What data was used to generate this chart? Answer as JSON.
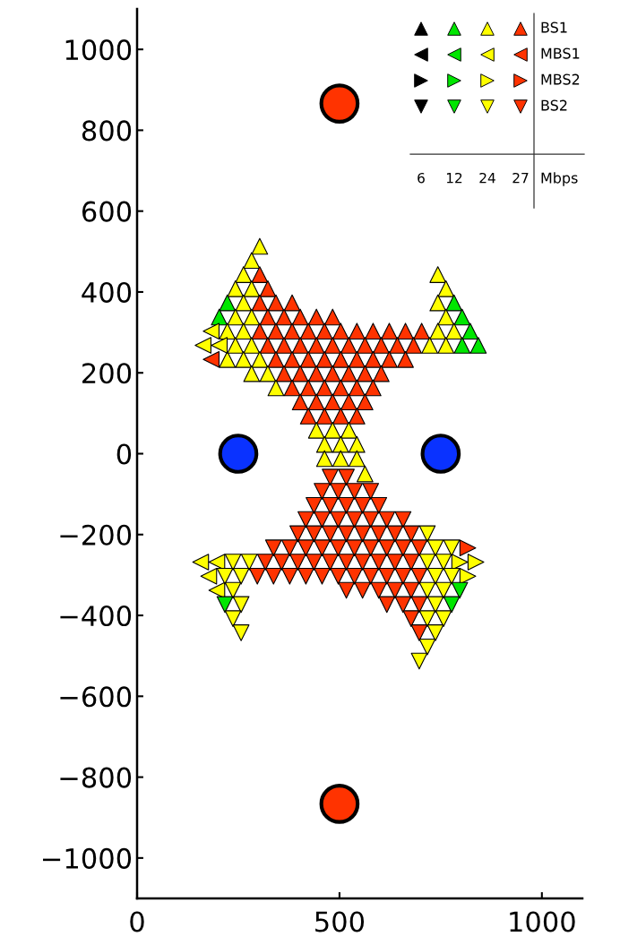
{
  "chart_data": {
    "type": "scatter",
    "xlim": [
      0,
      1100
    ],
    "ylim": [
      -1100,
      1100
    ],
    "xticks": [
      0,
      500,
      1000
    ],
    "yticks": [
      -1000,
      -800,
      -600,
      -400,
      -200,
      0,
      200,
      400,
      600,
      800,
      1000
    ],
    "grid": false,
    "legend": "top right",
    "annotations": [
      "6",
      "12",
      "24",
      "27",
      "Mbps"
    ],
    "colors": [
      "#000000",
      "#00e600",
      "#ffff00",
      "#ff3300"
    ],
    "series": [
      {
        "name": "BS1",
        "marker": "triangle_up",
        "x": [
          303,
          283,
          263,
          303,
          743,
          243,
          283,
          323,
          763,
          223,
          263,
          303,
          343,
          383,
          743,
          783,
          203,
          243,
          283,
          323,
          363,
          403,
          443,
          483,
          763,
          803,
          223,
          263,
          303,
          343,
          383,
          423,
          463,
          503,
          543,
          583,
          623,
          663,
          703,
          743,
          783,
          823,
          243,
          283,
          323,
          363,
          403,
          443,
          483,
          523,
          563,
          603,
          643,
          683,
          723,
          763,
          803,
          843,
          223,
          263,
          303,
          343,
          383,
          423,
          463,
          503,
          543,
          583,
          623,
          663,
          283,
          323,
          363,
          403,
          443,
          483,
          523,
          563,
          603,
          343,
          383,
          423,
          463,
          503,
          543,
          583,
          403,
          443,
          483,
          523,
          563,
          423,
          463,
          503,
          543,
          443,
          483,
          523,
          463,
          503,
          543,
          463,
          503,
          543,
          563
        ],
        "values": [
          513,
          478,
          443,
          443,
          443,
          408,
          408,
          408,
          408,
          373,
          373,
          373,
          373,
          373,
          373,
          373,
          338,
          338,
          338,
          338,
          338,
          338,
          338,
          338,
          338,
          338,
          303,
          303,
          303,
          303,
          303,
          303,
          303,
          303,
          303,
          303,
          303,
          303,
          303,
          303,
          303,
          303,
          268,
          268,
          268,
          268,
          268,
          268,
          268,
          268,
          268,
          268,
          268,
          268,
          268,
          268,
          268,
          268,
          233,
          233,
          233,
          233,
          233,
          233,
          233,
          233,
          233,
          233,
          233,
          233,
          198,
          198,
          198,
          198,
          198,
          198,
          198,
          198,
          198,
          163,
          163,
          163,
          163,
          163,
          163,
          163,
          128,
          128,
          128,
          128,
          128,
          93,
          93,
          93,
          93,
          58,
          58,
          58,
          23,
          23,
          23,
          -12,
          -12,
          -12,
          -50
        ],
        "colors": [
          "#ffff00",
          "#ffff00",
          "#ffff00",
          "#ff3300",
          "#ffff00",
          "#ffff00",
          "#ffff00",
          "#ff3300",
          "#ffff00",
          "#00e600",
          "#ffff00",
          "#ff3300",
          "#ff3300",
          "#ff3300",
          "#ffff00",
          "#00e600",
          "#00e600",
          "#ffff00",
          "#ffff00",
          "#ff3300",
          "#ff3300",
          "#ff3300",
          "#ff3300",
          "#ff3300",
          "#ffff00",
          "#00e600",
          "#ffff00",
          "#ffff00",
          "#ff3300",
          "#ff3300",
          "#ff3300",
          "#ff3300",
          "#ff3300",
          "#ff3300",
          "#ff3300",
          "#ff3300",
          "#ff3300",
          "#ff3300",
          "#ff3300",
          "#ffff00",
          "#ffff00",
          "#00e600",
          "#ffff00",
          "#ffff00",
          "#ff3300",
          "#ff3300",
          "#ff3300",
          "#ff3300",
          "#ff3300",
          "#ff3300",
          "#ff3300",
          "#ff3300",
          "#ff3300",
          "#ff3300",
          "#ffff00",
          "#ffff00",
          "#00e600",
          "#00e600",
          "#ffff00",
          "#ffff00",
          "#ffff00",
          "#ff3300",
          "#ff3300",
          "#ff3300",
          "#ff3300",
          "#ff3300",
          "#ff3300",
          "#ff3300",
          "#ff3300",
          "#ff3300",
          "#ffff00",
          "#ffff00",
          "#ff3300",
          "#ff3300",
          "#ff3300",
          "#ff3300",
          "#ff3300",
          "#ff3300",
          "#ff3300",
          "#ffff00",
          "#ff3300",
          "#ff3300",
          "#ff3300",
          "#ff3300",
          "#ff3300",
          "#ff3300",
          "#ff3300",
          "#ff3300",
          "#ff3300",
          "#ff3300",
          "#ff3300",
          "#ff3300",
          "#ff3300",
          "#ff3300",
          "#ff3300",
          "#ffff00",
          "#ffff00",
          "#ffff00",
          "#ffff00",
          "#ffff00",
          "#ffff00",
          "#ffff00",
          "#ffff00",
          "#ffff00",
          "#ffff00"
        ]
      },
      {
        "name": "MBS1",
        "marker": "triangle_left",
        "x": [
          183,
          163,
          203,
          183,
          157,
          197,
          177,
          197
        ],
        "values": [
          303,
          268,
          268,
          233,
          -268,
          -268,
          -303,
          -338
        ],
        "colors": [
          "#ffff00",
          "#ffff00",
          "#ffff00",
          "#ff3300",
          "#ffff00",
          "#ffff00",
          "#ffff00",
          "#ffff00"
        ]
      },
      {
        "name": "MBS2",
        "marker": "triangle_right",
        "x": [
          817,
          797,
          837,
          817
        ],
        "values": [
          -233,
          -268,
          -268,
          -303
        ],
        "colors": [
          "#ff3300",
          "#ffff00",
          "#ffff00",
          "#ffff00"
        ]
      },
      {
        "name": "BS2",
        "marker": "triangle_down",
        "x": [
          477,
          517,
          457,
          497,
          537,
          577,
          437,
          477,
          517,
          557,
          597,
          417,
          457,
          497,
          537,
          577,
          617,
          657,
          397,
          437,
          477,
          517,
          557,
          597,
          637,
          677,
          717,
          337,
          377,
          417,
          457,
          497,
          537,
          577,
          617,
          657,
          697,
          737,
          777,
          237,
          277,
          317,
          357,
          397,
          437,
          477,
          517,
          557,
          597,
          637,
          677,
          717,
          757,
          217,
          257,
          297,
          337,
          377,
          417,
          457,
          497,
          537,
          577,
          617,
          657,
          697,
          737,
          777,
          237,
          517,
          557,
          597,
          637,
          677,
          717,
          757,
          797,
          217,
          257,
          617,
          657,
          697,
          737,
          777,
          237,
          677,
          717,
          757,
          257,
          697,
          737,
          717,
          697
        ],
        "values": [
          -58,
          -58,
          -93,
          -93,
          -93,
          -93,
          -128,
          -128,
          -128,
          -128,
          -128,
          -163,
          -163,
          -163,
          -163,
          -163,
          -163,
          -163,
          -198,
          -198,
          -198,
          -198,
          -198,
          -198,
          -198,
          -198,
          -198,
          -233,
          -233,
          -233,
          -233,
          -233,
          -233,
          -233,
          -233,
          -233,
          -233,
          -233,
          -233,
          -268,
          -268,
          -268,
          -268,
          -268,
          -268,
          -268,
          -268,
          -268,
          -268,
          -268,
          -268,
          -268,
          -268,
          -303,
          -303,
          -303,
          -303,
          -303,
          -303,
          -303,
          -303,
          -303,
          -303,
          -303,
          -303,
          -303,
          -303,
          -303,
          -338,
          -338,
          -338,
          -338,
          -338,
          -338,
          -338,
          -338,
          -338,
          -373,
          -373,
          -373,
          -373,
          -373,
          -373,
          -373,
          -408,
          -408,
          -408,
          -408,
          -443,
          -443,
          -443,
          -478,
          -513
        ],
        "colors": [
          "#ff3300",
          "#ff3300",
          "#ff3300",
          "#ff3300",
          "#ff3300",
          "#ff3300",
          "#ff3300",
          "#ff3300",
          "#ff3300",
          "#ff3300",
          "#ff3300",
          "#ff3300",
          "#ff3300",
          "#ff3300",
          "#ff3300",
          "#ff3300",
          "#ff3300",
          "#ff3300",
          "#ff3300",
          "#ff3300",
          "#ff3300",
          "#ff3300",
          "#ff3300",
          "#ff3300",
          "#ff3300",
          "#ff3300",
          "#ffff00",
          "#ff3300",
          "#ff3300",
          "#ff3300",
          "#ff3300",
          "#ff3300",
          "#ff3300",
          "#ff3300",
          "#ff3300",
          "#ff3300",
          "#ff3300",
          "#ffff00",
          "#ffff00",
          "#ffff00",
          "#ffff00",
          "#ff3300",
          "#ff3300",
          "#ff3300",
          "#ff3300",
          "#ff3300",
          "#ff3300",
          "#ff3300",
          "#ff3300",
          "#ff3300",
          "#ff3300",
          "#ffff00",
          "#ffff00",
          "#ffff00",
          "#ffff00",
          "#ff3300",
          "#ff3300",
          "#ff3300",
          "#ff3300",
          "#ff3300",
          "#ff3300",
          "#ff3300",
          "#ff3300",
          "#ff3300",
          "#ff3300",
          "#ff3300",
          "#ffff00",
          "#ffff00",
          "#ffff00",
          "#ff3300",
          "#ff3300",
          "#ff3300",
          "#ff3300",
          "#ff3300",
          "#ffff00",
          "#ffff00",
          "#00e600",
          "#00e600",
          "#ffff00",
          "#ff3300",
          "#ff3300",
          "#ff3300",
          "#ffff00",
          "#00e600",
          "#ffff00",
          "#ff3300",
          "#ffff00",
          "#ffff00",
          "#ffff00",
          "#ff3300",
          "#ffff00",
          "#ffff00",
          "#ffff00"
        ]
      },
      {
        "marker": "circle",
        "color": "#ff3300",
        "x": [
          500,
          500
        ],
        "values": [
          866,
          -866
        ]
      },
      {
        "marker": "circle",
        "color": "#0a32ff",
        "x": [
          250,
          750
        ],
        "values": [
          0,
          0
        ]
      }
    ]
  }
}
